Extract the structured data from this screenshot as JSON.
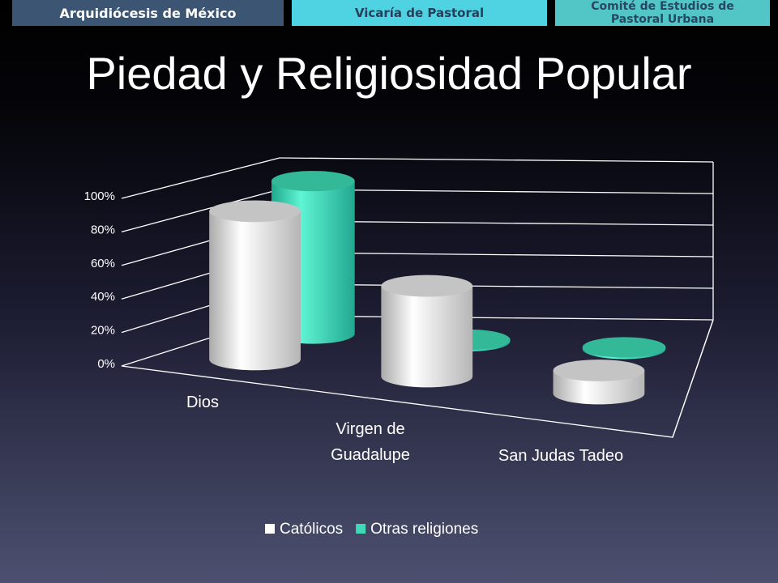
{
  "header": {
    "tabs": [
      "Arquidiócesis de México",
      "Vicaría de Pastoral",
      "Comité de Estudios de Pastoral Urbana"
    ]
  },
  "chart_data": {
    "type": "bar",
    "title": "Piedad y Religiosidad Popular",
    "categories": [
      "Dios",
      "Virgen de Guadalupe",
      "San Judas Tadeo"
    ],
    "series": [
      {
        "name": "Católicos",
        "color": "#ffffff",
        "values": [
          90,
          55,
          14
        ]
      },
      {
        "name": "Otras religiones",
        "color": "#3fd9b8",
        "values": [
          95,
          1,
          1
        ]
      }
    ],
    "ylim": [
      0,
      100
    ],
    "yticks": [
      {
        "value": 0,
        "label": "0%"
      },
      {
        "value": 20,
        "label": "20%"
      },
      {
        "value": 40,
        "label": "40%"
      },
      {
        "value": 60,
        "label": "60%"
      },
      {
        "value": 80,
        "label": "80%"
      },
      {
        "value": 100,
        "label": "100%"
      }
    ],
    "grid": true,
    "legend": "bottom"
  }
}
